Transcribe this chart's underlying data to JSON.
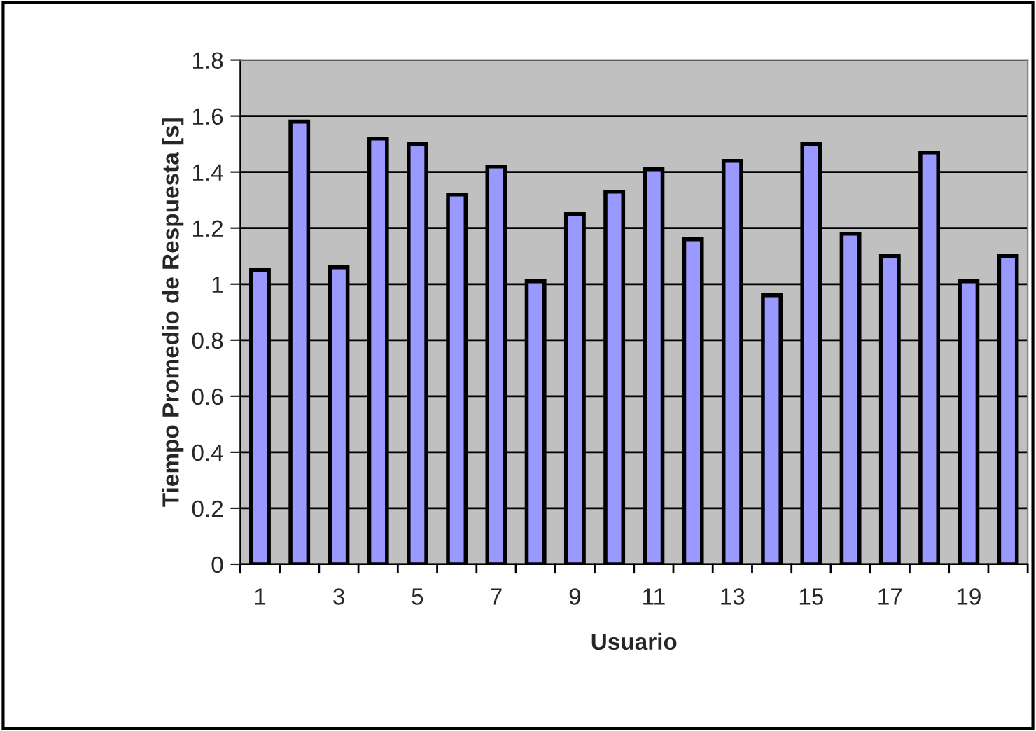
{
  "chart_data": {
    "type": "bar",
    "categories": [
      "1",
      null,
      "3",
      null,
      "5",
      null,
      "7",
      null,
      "9",
      null,
      "11",
      null,
      "13",
      null,
      "15",
      null,
      "17",
      null,
      "19",
      null
    ],
    "values": [
      1.05,
      1.58,
      1.06,
      1.52,
      1.5,
      1.32,
      1.42,
      1.01,
      1.25,
      1.33,
      1.41,
      1.16,
      1.44,
      0.96,
      1.5,
      1.18,
      1.1,
      1.47,
      1.01,
      1.1
    ],
    "color": "#9999ff",
    "xlabel": "Usuario",
    "ylabel": "Tiempo Promedio de Respuesta [s]",
    "ylim": [
      0,
      1.8
    ],
    "yticks": [
      0,
      0.2,
      0.4,
      0.6,
      0.8,
      1,
      1.2,
      1.4,
      1.6,
      1.8
    ],
    "grid": "y",
    "legend": false
  }
}
